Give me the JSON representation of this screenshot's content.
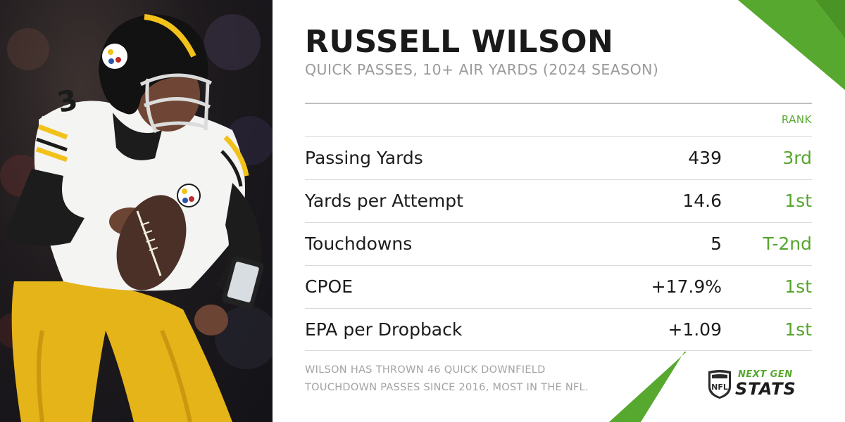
{
  "header": {
    "title": "RUSSELL WILSON",
    "subtitle": "QUICK PASSES, 10+ AIR YARDS (2024 SEASON)"
  },
  "table": {
    "rank_header": "RANK",
    "rows": [
      {
        "label": "Passing Yards",
        "value": "439",
        "rank": "3rd"
      },
      {
        "label": "Yards per Attempt",
        "value": "14.6",
        "rank": "1st"
      },
      {
        "label": "Touchdowns",
        "value": "5",
        "rank": "T-2nd"
      },
      {
        "label": "CPOE",
        "value": "+17.9%",
        "rank": "1st"
      },
      {
        "label": "EPA per Dropback",
        "value": "+1.09",
        "rank": "1st"
      }
    ]
  },
  "footnote": "WILSON HAS THROWN 46 QUICK DOWNFIELD TOUCHDOWN PASSES SINCE 2016, MOST IN THE NFL.",
  "logo": {
    "shield_text": "NFL",
    "line1": "NEXT GEN",
    "line2": "STATS",
    "icon": "nfl-shield-icon"
  },
  "photo": {
    "subject": "player-photo",
    "jersey_number": "3"
  },
  "colors": {
    "accent_green": "#56a52d",
    "jersey_gold": "#f2c21b",
    "jersey_white": "#f4f4f2",
    "dark": "#1b1b1b"
  }
}
